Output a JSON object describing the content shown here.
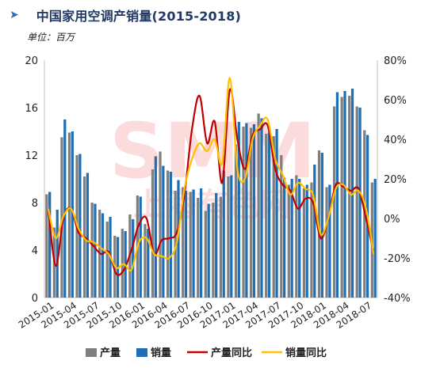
{
  "header": {
    "arrow_glyph": "➤",
    "title": "中国家用空调产销量(2015-2018)",
    "unit": "单位：百万"
  },
  "watermark": {
    "logo_text": "SMM",
    "logo_subtext": "上海有色网"
  },
  "colors": {
    "production_bar": "#7f7f7f",
    "sales_bar": "#1f6fb5",
    "production_yoy_line": "#c00000",
    "sales_yoy_line": "#ffc000",
    "title": "#1f3864"
  },
  "chart_data": {
    "type": "bar",
    "x_tick_labels": [
      "2015-01",
      "2015-04",
      "2015-07",
      "2015-10",
      "2016-01",
      "2016-04",
      "2016-07",
      "2016-10",
      "2017-01",
      "2017-04",
      "2017-07",
      "2017-10",
      "2018-01",
      "2018-04",
      "2018-07"
    ],
    "left_axis": {
      "min": 0,
      "max": 20,
      "ticks": [
        "0",
        "4",
        "8",
        "12",
        "16",
        "20"
      ]
    },
    "right_axis": {
      "min": -40,
      "max": 80,
      "unit": "%",
      "ticks": [
        "-40%",
        "-20%",
        "0%",
        "20%",
        "40%",
        "60%",
        "80%"
      ]
    },
    "legend": [
      "产量",
      "销量",
      "产量同比",
      "销量同比"
    ],
    "legend_position": "bottom",
    "categories": [
      "2015-01",
      "2015-02",
      "2015-03",
      "2015-04",
      "2015-05",
      "2015-06",
      "2015-07",
      "2015-08",
      "2015-09",
      "2015-10",
      "2015-11",
      "2015-12",
      "2016-01",
      "2016-02",
      "2016-03",
      "2016-04",
      "2016-05",
      "2016-06",
      "2016-07",
      "2016-08",
      "2016-09",
      "2016-10",
      "2016-11",
      "2016-12",
      "2017-01",
      "2017-02",
      "2017-03",
      "2017-04",
      "2017-05",
      "2017-06",
      "2017-07",
      "2017-08",
      "2017-09",
      "2017-10",
      "2017-11",
      "2017-12",
      "2018-01",
      "2018-02",
      "2018-03",
      "2018-04",
      "2018-05",
      "2018-06",
      "2018-07",
      "2018-08"
    ],
    "series": [
      {
        "name": "产量",
        "kind": "bar",
        "axis": "left",
        "values": [
          8.7,
          5.9,
          13.5,
          13.9,
          12.0,
          10.2,
          8.0,
          7.4,
          6.4,
          5.2,
          5.8,
          7.0,
          8.6,
          6.2,
          10.8,
          12.3,
          10.7,
          9.0,
          9.3,
          8.9,
          8.4,
          7.3,
          8.0,
          8.5,
          10.2,
          12.9,
          14.4,
          14.3,
          15.5,
          13.8,
          13.6,
          12.0,
          9.5,
          10.3,
          9.2,
          9.7,
          12.4,
          9.3,
          16.1,
          16.9,
          17.0,
          16.1,
          14.1,
          9.7
        ]
      },
      {
        "name": "销量",
        "kind": "bar",
        "axis": "left",
        "values": [
          8.9,
          7.4,
          15.0,
          14.0,
          12.1,
          10.5,
          7.9,
          7.1,
          6.8,
          5.1,
          5.6,
          6.6,
          8.5,
          5.8,
          11.9,
          11.1,
          10.6,
          9.9,
          9.0,
          9.1,
          9.2,
          7.9,
          8.8,
          10.7,
          10.3,
          14.8,
          14.7,
          14.6,
          15.1,
          13.9,
          14.2,
          10.1,
          10.0,
          10.0,
          9.5,
          11.2,
          12.2,
          9.5,
          17.3,
          17.4,
          17.6,
          16.0,
          13.7,
          10.0
        ]
      },
      {
        "name": "产量同比",
        "kind": "line",
        "axis": "right",
        "values": [
          5,
          -24,
          0,
          5,
          -7,
          -10,
          -14,
          -18,
          -17,
          -28,
          -26,
          -16,
          -3,
          0,
          -18,
          -11,
          -10,
          -7,
          12,
          45,
          62,
          38,
          49,
          18,
          65,
          40,
          25,
          42,
          45,
          47,
          25,
          17,
          14,
          5,
          10,
          8,
          -10,
          0,
          17,
          16,
          14,
          15,
          0,
          -17
        ]
      },
      {
        "name": "销量同比",
        "kind": "line",
        "axis": "right",
        "values": [
          5,
          -10,
          1,
          5,
          -5,
          -11,
          -12,
          -15,
          -18,
          -25,
          -23,
          -26,
          -12,
          -10,
          -18,
          -19,
          -20,
          -12,
          15,
          30,
          38,
          34,
          40,
          28,
          71,
          25,
          20,
          40,
          47,
          50,
          30,
          22,
          12,
          18,
          15,
          12,
          -8,
          0,
          15,
          17,
          12,
          14,
          5,
          -18
        ]
      }
    ]
  }
}
